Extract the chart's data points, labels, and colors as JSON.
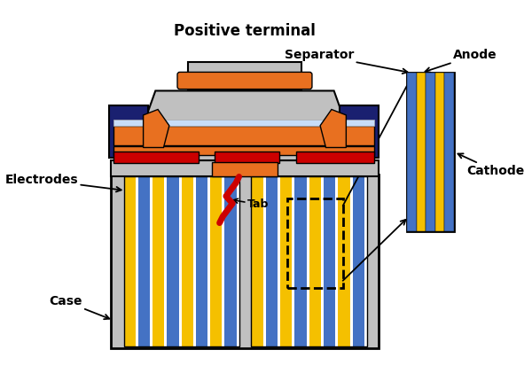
{
  "bg_color": "#ffffff",
  "gray": "#c0c0c0",
  "dark_blue": "#1a2070",
  "orange": "#e87020",
  "red": "#cc0000",
  "dark_red": "#aa0000",
  "light_blue": "#c8ddf8",
  "yellow": "#f5c000",
  "blue": "#4472c4",
  "black": "#000000",
  "white": "#ffffff",
  "title": "Positive terminal",
  "labels": {
    "electrodes": "Electrodes",
    "case": "Case",
    "tab": "Tab",
    "separator": "Separator",
    "anode": "Anode",
    "cathode": "Cathode"
  },
  "figsize": [
    6.0,
    4.3
  ],
  "dpi": 100
}
